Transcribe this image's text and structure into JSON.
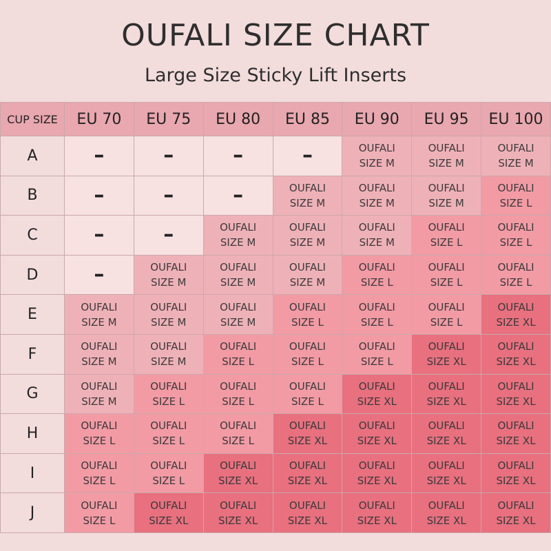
{
  "title": "OUFALI SIZE CHART",
  "subtitle": "Large Size Sticky Lift Inserts",
  "chart_data": {
    "type": "table",
    "title": "OUFALI SIZE CHART",
    "subtitle": "Large Size Sticky Lift Inserts",
    "corner_label": "CUP SIZE",
    "columns": [
      "EU 70",
      "EU 75",
      "EU 80",
      "EU 85",
      "EU 90",
      "EU 95",
      "EU 100"
    ],
    "rows": [
      {
        "cup": "A",
        "cells": [
          "–",
          "–",
          "–",
          "–",
          "OUFALI SIZE M",
          "OUFALI SIZE M",
          "OUFALI SIZE M"
        ]
      },
      {
        "cup": "B",
        "cells": [
          "–",
          "–",
          "–",
          "OUFALI SIZE M",
          "OUFALI SIZE M",
          "OUFALI SIZE M",
          "OUFALI SIZE L"
        ]
      },
      {
        "cup": "C",
        "cells": [
          "–",
          "–",
          "OUFALI SIZE M",
          "OUFALI SIZE M",
          "OUFALI SIZE M",
          "OUFALI SIZE L",
          "OUFALI SIZE L"
        ]
      },
      {
        "cup": "D",
        "cells": [
          "–",
          "OUFALI SIZE M",
          "OUFALI SIZE M",
          "OUFALI SIZE M",
          "OUFALI SIZE L",
          "OUFALI SIZE L",
          "OUFALI SIZE L"
        ]
      },
      {
        "cup": "E",
        "cells": [
          "OUFALI SIZE M",
          "OUFALI SIZE M",
          "OUFALI SIZE M",
          "OUFALI SIZE L",
          "OUFALI SIZE L",
          "OUFALI SIZE L",
          "OUFALI SIZE XL"
        ]
      },
      {
        "cup": "F",
        "cells": [
          "OUFALI SIZE M",
          "OUFALI SIZE M",
          "OUFALI SIZE L",
          "OUFALI SIZE L",
          "OUFALI SIZE L",
          "OUFALI SIZE XL",
          "OUFALI SIZE XL"
        ]
      },
      {
        "cup": "G",
        "cells": [
          "OUFALI SIZE M",
          "OUFALI SIZE L",
          "OUFALI SIZE L",
          "OUFALI SIZE L",
          "OUFALI SIZE XL",
          "OUFALI SIZE XL",
          "OUFALI SIZE XL"
        ]
      },
      {
        "cup": "H",
        "cells": [
          "OUFALI SIZE L",
          "OUFALI SIZE L",
          "OUFALI SIZE L",
          "OUFALI SIZE XL",
          "OUFALI SIZE XL",
          "OUFALI SIZE XL",
          "OUFALI SIZE XL"
        ]
      },
      {
        "cup": "I",
        "cells": [
          "OUFALI SIZE L",
          "OUFALI SIZE L",
          "OUFALI SIZE XL",
          "OUFALI SIZE XL",
          "OUFALI SIZE XL",
          "OUFALI SIZE XL",
          "OUFALI SIZE XL"
        ]
      },
      {
        "cup": "J",
        "cells": [
          "OUFALI SIZE L",
          "OUFALI SIZE XL",
          "OUFALI SIZE XL",
          "OUFALI SIZE XL",
          "OUFALI SIZE XL",
          "OUFALI SIZE XL",
          "OUFALI SIZE XL"
        ]
      }
    ],
    "colors": {
      "background": "#f3dcdc",
      "header": "#e9a7af",
      "none": "#f7e1e1",
      "size_m": "#efb1b8",
      "size_l": "#f29ba5",
      "size_xl": "#e8707f"
    }
  }
}
